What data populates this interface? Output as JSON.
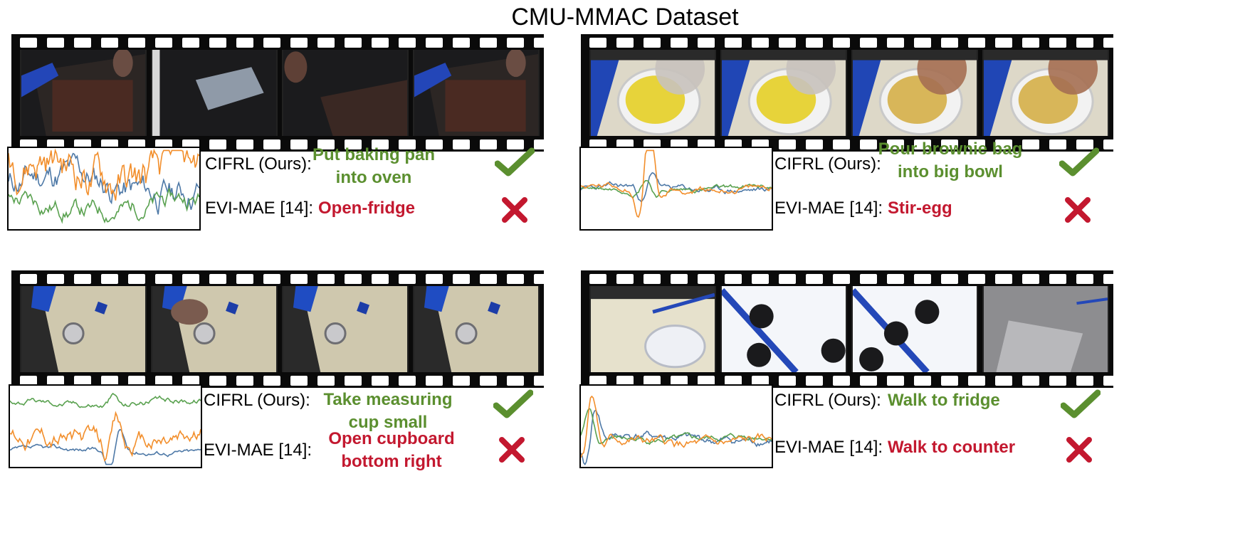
{
  "title": "CMU-MMAC Dataset",
  "colors": {
    "correct": "#5b8f2f",
    "wrong": "#c3182f",
    "series": [
      "#4e79a7",
      "#f28e2b",
      "#59a14f"
    ]
  },
  "panels": [
    {
      "scene": "kitchen-oven",
      "ours_label": "CIFRL (Ours):",
      "ours_prediction": "Put baking pan into oven",
      "ours_correct": true,
      "baseline_label": "EVI-MAE [14]:",
      "baseline_prediction": "Open-fridge",
      "baseline_correct": false
    },
    {
      "scene": "mixing-bowl",
      "ours_label": "CIFRL (Ours):",
      "ours_prediction": "Pour brownie bag into big bowl",
      "ours_correct": true,
      "baseline_label": "EVI-MAE [14]:",
      "baseline_prediction": "Stir-egg",
      "baseline_correct": false
    },
    {
      "scene": "counter-cup",
      "ours_label": "CIFRL (Ours):",
      "ours_prediction": "Take measuring cup small",
      "ours_correct": true,
      "baseline_label": "EVI-MAE [14]:",
      "baseline_prediction": "Open cupboard bottom right",
      "baseline_correct": false
    },
    {
      "scene": "walking-stove",
      "ours_label": "CIFRL (Ours):",
      "ours_prediction": "Walk to fridge",
      "ours_correct": true,
      "baseline_label": "EVI-MAE [14]:",
      "baseline_prediction": "Walk to counter",
      "baseline_correct": false
    }
  ]
}
